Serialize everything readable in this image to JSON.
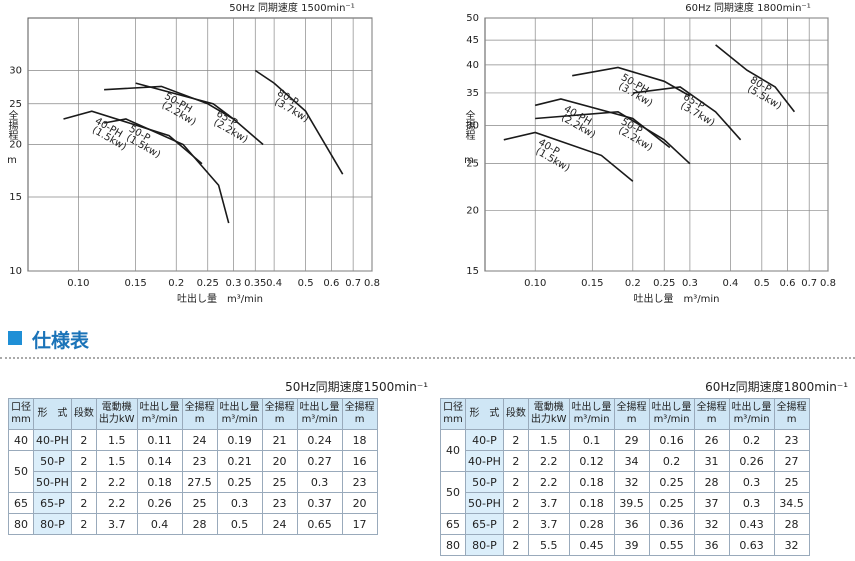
{
  "chart_data": [
    {
      "type": "line",
      "title": "50Hz 同期速度 1500min⁻¹",
      "x_label": "吐出し量　m³/min",
      "y_label": "全揚程",
      "y_unit": "m",
      "log": true,
      "grid": true,
      "color": "#1a1a1a",
      "xlim": [
        0.07,
        0.8
      ],
      "xticks": [
        {
          "value": 0.1,
          "label": "0.10"
        },
        0.15,
        0.2,
        0.25,
        0.3,
        0.35,
        0.4,
        0.5,
        0.6,
        0.7,
        0.8
      ],
      "ylim": [
        10,
        40
      ],
      "yticks": [
        10,
        15,
        20,
        25,
        30
      ],
      "series": [
        {
          "name": "40-PH",
          "power": "(1.5kw)",
          "x": [
            0.09,
            0.11,
            0.19,
            0.24
          ],
          "values": [
            23,
            24,
            21,
            18
          ]
        },
        {
          "name": "50-PH",
          "power": "(2.2kw)",
          "x": [
            0.12,
            0.18,
            0.25,
            0.3
          ],
          "values": [
            27,
            27.5,
            25,
            23
          ]
        },
        {
          "name": "65-P",
          "power": "(2.2kw)",
          "x": [
            0.15,
            0.26,
            0.3,
            0.37
          ],
          "values": [
            28,
            25,
            23,
            20
          ]
        },
        {
          "name": "50-P",
          "power": "(1.5kw)",
          "x": [
            0.12,
            0.14,
            0.21,
            0.27,
            0.29
          ],
          "values": [
            22.5,
            23,
            20,
            16,
            13
          ]
        },
        {
          "name": "80-P",
          "power": "(3.7kw)",
          "x": [
            0.35,
            0.4,
            0.5,
            0.65
          ],
          "values": [
            30,
            28,
            24,
            17
          ]
        }
      ]
    },
    {
      "type": "line",
      "title": "60Hz 同期速度 1800min⁻¹",
      "x_label": "吐出し量　m³/min",
      "y_label": "全揚程",
      "y_unit": "m",
      "log": true,
      "grid": true,
      "color": "#1a1a1a",
      "xlim": [
        0.07,
        0.8
      ],
      "xticks": [
        {
          "value": 0.1,
          "label": "0.10"
        },
        0.15,
        0.2,
        0.25,
        0.3,
        0.4,
        0.5,
        0.6,
        0.7,
        0.8
      ],
      "ylim": [
        15,
        50
      ],
      "yticks": [
        15,
        20,
        25,
        30,
        35,
        40,
        45,
        50
      ],
      "series": [
        {
          "name": "40-P",
          "power": "(1.5kw)",
          "x": [
            0.08,
            0.1,
            0.16,
            0.2
          ],
          "values": [
            28,
            29,
            26,
            23
          ]
        },
        {
          "name": "40-PH",
          "power": "(2.2kw)",
          "x": [
            0.1,
            0.12,
            0.2,
            0.26
          ],
          "values": [
            33,
            34,
            31,
            27
          ]
        },
        {
          "name": "50-P",
          "power": "(2.2kw)",
          "x": [
            0.1,
            0.18,
            0.25,
            0.3
          ],
          "values": [
            31,
            32,
            28,
            25
          ]
        },
        {
          "name": "50-PH",
          "power": "(3.7kw)",
          "x": [
            0.13,
            0.18,
            0.25,
            0.3
          ],
          "values": [
            38,
            39.5,
            37,
            34.5
          ]
        },
        {
          "name": "65-P",
          "power": "(3.7kw)",
          "x": [
            0.2,
            0.28,
            0.36,
            0.43
          ],
          "values": [
            35,
            36,
            32,
            28
          ]
        },
        {
          "name": "80-P",
          "power": "(5.5kw)",
          "x": [
            0.36,
            0.45,
            0.55,
            0.63
          ],
          "values": [
            44,
            39,
            36,
            32
          ]
        }
      ]
    }
  ],
  "section": {
    "title": "仕様表"
  },
  "tables": [
    {
      "caption": "50Hz同期速度1500min⁻¹",
      "header": [
        [
          "口径",
          "mm"
        ],
        [
          "形　式"
        ],
        [
          "段数"
        ],
        [
          "電動機",
          "出力kW"
        ],
        [
          "吐出し量",
          "m³/min"
        ],
        [
          "全揚程",
          "m"
        ],
        [
          "吐出し量",
          "m³/min"
        ],
        [
          "全揚程",
          "m"
        ],
        [
          "吐出し量",
          "m³/min"
        ],
        [
          "全揚程",
          "m"
        ]
      ],
      "groups": [
        {
          "bore": "40",
          "rows": [
            [
              "40-PH",
              "2",
              "1.5",
              "0.11",
              "24",
              "0.19",
              "21",
              "0.24",
              "18"
            ]
          ]
        },
        {
          "bore": "50",
          "rows": [
            [
              "50-P",
              "2",
              "1.5",
              "0.14",
              "23",
              "0.21",
              "20",
              "0.27",
              "16"
            ],
            [
              "50-PH",
              "2",
              "2.2",
              "0.18",
              "27.5",
              "0.25",
              "25",
              "0.3",
              "23"
            ]
          ]
        },
        {
          "bore": "65",
          "rows": [
            [
              "65-P",
              "2",
              "2.2",
              "0.26",
              "25",
              "0.3",
              "23",
              "0.37",
              "20"
            ]
          ]
        },
        {
          "bore": "80",
          "rows": [
            [
              "80-P",
              "2",
              "3.7",
              "0.4",
              "28",
              "0.5",
              "24",
              "0.65",
              "17"
            ]
          ]
        }
      ]
    },
    {
      "caption": "60Hz同期速度1800min⁻¹",
      "header": [
        [
          "口径",
          "mm"
        ],
        [
          "形　式"
        ],
        [
          "段数"
        ],
        [
          "電動機",
          "出力kW"
        ],
        [
          "吐出し量",
          "m³/min"
        ],
        [
          "全揚程",
          "m"
        ],
        [
          "吐出し量",
          "m³/min"
        ],
        [
          "全揚程",
          "m"
        ],
        [
          "吐出し量",
          "m³/min"
        ],
        [
          "全揚程",
          "m"
        ]
      ],
      "groups": [
        {
          "bore": "40",
          "rows": [
            [
              "40-P",
              "2",
              "1.5",
              "0.1",
              "29",
              "0.16",
              "26",
              "0.2",
              "23"
            ],
            [
              "40-PH",
              "2",
              "2.2",
              "0.12",
              "34",
              "0.2",
              "31",
              "0.26",
              "27"
            ]
          ]
        },
        {
          "bore": "50",
          "rows": [
            [
              "50-P",
              "2",
              "2.2",
              "0.18",
              "32",
              "0.25",
              "28",
              "0.3",
              "25"
            ],
            [
              "50-PH",
              "2",
              "3.7",
              "0.18",
              "39.5",
              "0.25",
              "37",
              "0.3",
              "34.5"
            ]
          ]
        },
        {
          "bore": "65",
          "rows": [
            [
              "65-P",
              "2",
              "3.7",
              "0.28",
              "36",
              "0.36",
              "32",
              "0.43",
              "28"
            ]
          ]
        },
        {
          "bore": "80",
          "rows": [
            [
              "80-P",
              "2",
              "5.5",
              "0.45",
              "39",
              "0.55",
              "36",
              "0.63",
              "32"
            ]
          ]
        }
      ]
    }
  ]
}
